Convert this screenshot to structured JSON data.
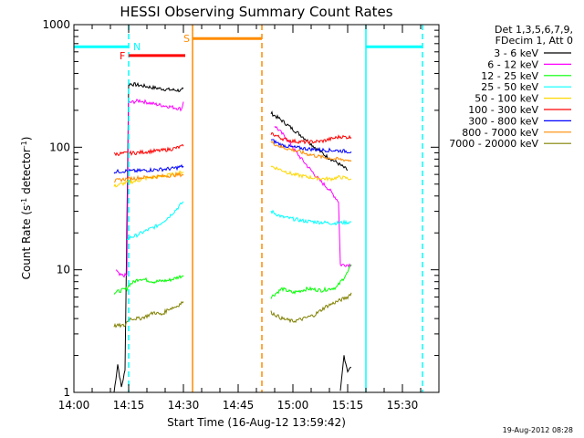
{
  "chart_data": {
    "type": "line",
    "title": "HESSI Observing Summary Count Rates",
    "xlabel": "Start Time (16-Aug-12 13:59:42)",
    "ylabel_main": "Count Rate (s",
    "ylabel_sup1": "-1",
    "ylabel_mid": " detector",
    "ylabel_sup2": "-1",
    "ylabel_end": ")",
    "y_scale": "log",
    "ylim": [
      1,
      1000
    ],
    "xlim_minutes": [
      0,
      100
    ],
    "x_tick_labels": [
      "14:00",
      "14:15",
      "14:30",
      "14:45",
      "15:00",
      "15:15",
      "15:30"
    ],
    "x_tick_minutes": [
      0,
      15,
      30,
      45,
      60,
      75,
      90
    ],
    "y_tick_labels": [
      "1",
      "10",
      "100",
      "1000"
    ],
    "y_tick_values": [
      1,
      10,
      100,
      1000
    ],
    "legend_header": [
      "Det 1,3,5,6,7,9,",
      "FDecim 1, Att 0"
    ],
    "timestamp": "19-Aug-2012 08:28",
    "grid": false,
    "series": [
      {
        "name": "3 - 6 keV",
        "color": "#000000",
        "segments": [
          [
            [
              11,
              1
            ],
            [
              12,
              1.7
            ],
            [
              13,
              1.1
            ],
            [
              14,
              1.5
            ],
            [
              15,
              330
            ],
            [
              18,
              320
            ],
            [
              22,
              305
            ],
            [
              26,
              295
            ],
            [
              29.5,
              290
            ],
            [
              30,
              300
            ]
          ],
          [
            [
              73,
              1
            ],
            [
              74,
              2
            ],
            [
              75,
              1.5
            ],
            [
              76,
              1.6
            ]
          ],
          [
            [
              54,
              190
            ],
            [
              57,
              165
            ],
            [
              60,
              140
            ],
            [
              63,
              120
            ],
            [
              66,
              100
            ],
            [
              69,
              85
            ],
            [
              72,
              75
            ],
            [
              75,
              65
            ]
          ]
        ]
      },
      {
        "name": "6 - 12 keV",
        "color": "#ff00ff",
        "segments": [
          [
            [
              11.5,
              10
            ],
            [
              12.5,
              9
            ],
            [
              14.5,
              9
            ],
            [
              15,
              230
            ],
            [
              18,
              240
            ],
            [
              22,
              225
            ],
            [
              26,
              215
            ],
            [
              29.5,
              205
            ],
            [
              30,
              235
            ]
          ],
          [
            [
              55,
              150
            ],
            [
              58,
              120
            ],
            [
              61,
              90
            ],
            [
              64,
              70
            ],
            [
              67,
              55
            ],
            [
              70,
              45
            ],
            [
              72.5,
              36
            ],
            [
              73,
              11
            ],
            [
              76,
              11
            ]
          ]
        ]
      },
      {
        "name": "12 - 25 keV",
        "color": "#00ff00",
        "segments": [
          [
            [
              11,
              6.5
            ],
            [
              14.5,
              7
            ],
            [
              15,
              7.5
            ],
            [
              18,
              8.5
            ],
            [
              22,
              8
            ],
            [
              26,
              8.2
            ],
            [
              30,
              9
            ]
          ],
          [
            [
              54,
              6
            ],
            [
              57,
              7
            ],
            [
              60,
              6.5
            ],
            [
              64,
              7
            ],
            [
              68,
              6.8
            ],
            [
              72,
              7.2
            ],
            [
              75,
              9.5
            ],
            [
              76,
              11
            ]
          ]
        ]
      },
      {
        "name": "25 - 50 keV",
        "color": "#00ffff",
        "segments": [
          [
            [
              14.5,
              18
            ],
            [
              17,
              19
            ],
            [
              20,
              21
            ],
            [
              23,
              23
            ],
            [
              26,
              27
            ],
            [
              28,
              31
            ],
            [
              30,
              36
            ]
          ],
          [
            [
              54,
              30
            ],
            [
              57,
              27
            ],
            [
              60,
              26
            ],
            [
              63,
              25
            ],
            [
              67,
              24.5
            ],
            [
              71,
              24
            ],
            [
              76,
              24.5
            ]
          ]
        ]
      },
      {
        "name": "50 - 100 keV",
        "color": "#ffd700",
        "segments": [
          [
            [
              11,
              48
            ],
            [
              14,
              51
            ],
            [
              17,
              53
            ],
            [
              20,
              56
            ],
            [
              24,
              58
            ],
            [
              27,
              60
            ],
            [
              30,
              63
            ]
          ],
          [
            [
              54,
              70
            ],
            [
              57,
              65
            ],
            [
              60,
              60
            ],
            [
              63,
              58
            ],
            [
              66,
              56
            ],
            [
              70,
              55
            ],
            [
              73,
              57
            ],
            [
              76,
              55
            ]
          ]
        ]
      },
      {
        "name": "100 - 300 keV",
        "color": "#ff0000",
        "segments": [
          [
            [
              11,
              88
            ],
            [
              14,
              89
            ],
            [
              17,
              90
            ],
            [
              20,
              92
            ],
            [
              24,
              94
            ],
            [
              27,
              97
            ],
            [
              30,
              102
            ]
          ],
          [
            [
              54,
              130
            ],
            [
              57,
              118
            ],
            [
              60,
              112
            ],
            [
              64,
              110
            ],
            [
              68,
              112
            ],
            [
              71,
              118
            ],
            [
              73,
              122
            ],
            [
              76,
              120
            ]
          ]
        ]
      },
      {
        "name": "300 - 800 keV",
        "color": "#0000ff",
        "segments": [
          [
            [
              11,
              63
            ],
            [
              14,
              64
            ],
            [
              17,
              64
            ],
            [
              20,
              65
            ],
            [
              24,
              66
            ],
            [
              27,
              67
            ],
            [
              30,
              70
            ]
          ],
          [
            [
              54,
              115
            ],
            [
              57,
              104
            ],
            [
              60,
              100
            ],
            [
              64,
              97
            ],
            [
              68,
              95
            ],
            [
              72,
              94
            ],
            [
              76,
              92
            ]
          ]
        ]
      },
      {
        "name": "800 - 7000 keV",
        "color": "#ff8c00",
        "segments": [
          [
            [
              11,
              53
            ],
            [
              14,
              55
            ],
            [
              17,
              56
            ],
            [
              20,
              57
            ],
            [
              24,
              58
            ],
            [
              27,
              59
            ],
            [
              30,
              60
            ]
          ],
          [
            [
              54,
              110
            ],
            [
              57,
              100
            ],
            [
              60,
              95
            ],
            [
              64,
              88
            ],
            [
              68,
              83
            ],
            [
              72,
              80
            ],
            [
              76,
              78
            ]
          ]
        ]
      },
      {
        "name": "7000 - 20000 keV",
        "color": "#808000",
        "segments": [
          [
            [
              11,
              3.5
            ],
            [
              14,
              3.5
            ],
            [
              15,
              4
            ],
            [
              18,
              4
            ],
            [
              20,
              4.2
            ],
            [
              22,
              4.5
            ],
            [
              24,
              4.3
            ],
            [
              26,
              4.8
            ],
            [
              28,
              5
            ],
            [
              30,
              5.5
            ]
          ],
          [
            [
              54,
              4.5
            ],
            [
              57,
              4
            ],
            [
              60,
              3.8
            ],
            [
              63,
              4
            ],
            [
              66,
              4.3
            ],
            [
              69,
              5
            ],
            [
              72,
              5.5
            ],
            [
              75,
              6
            ],
            [
              76,
              6.5
            ]
          ]
        ]
      }
    ],
    "flags": [
      {
        "label": "F",
        "color": "#ff0000",
        "x_range": [
          15,
          30.5
        ],
        "y": 560
      },
      {
        "label": "S",
        "color": "#ff8c00",
        "x_range": [
          32.5,
          51.5
        ],
        "y": 770
      }
    ],
    "night_intervals": [
      {
        "label": "N",
        "color": "#00ffff",
        "x_range": [
          0,
          15
        ],
        "y": 660
      }
    ],
    "cyan_bars": [
      {
        "x_range": [
          0,
          15
        ],
        "y": 660
      },
      {
        "x_range": [
          80,
          95.5
        ],
        "y": 660
      }
    ],
    "vertical_markers": [
      {
        "x": 15,
        "color": "#00ffff",
        "style": "dashed"
      },
      {
        "x": 32.5,
        "color": "#ff8c00",
        "style": "solid"
      },
      {
        "x": 51.5,
        "color": "#ff8c00",
        "style": "dashed"
      },
      {
        "x": 80,
        "color": "#00ffff",
        "style": "solid"
      },
      {
        "x": 95.5,
        "color": "#00ffff",
        "style": "dashed"
      }
    ]
  }
}
